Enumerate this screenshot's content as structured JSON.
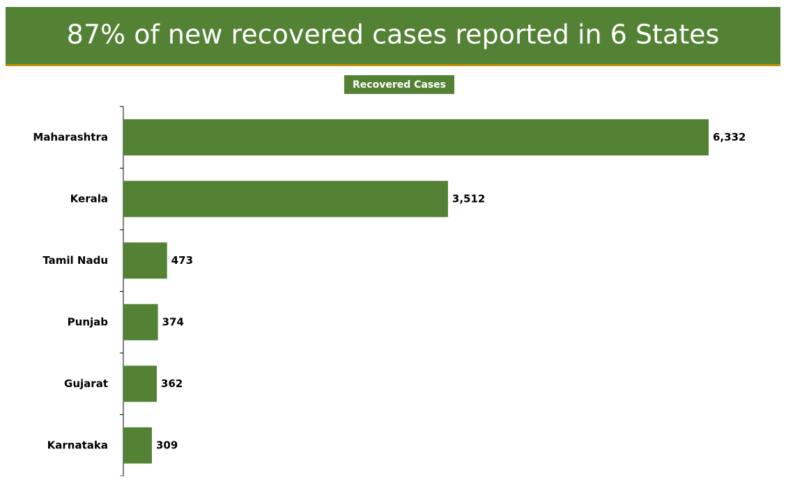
{
  "chart_data": {
    "type": "bar",
    "orientation": "horizontal",
    "title": "87% of new recovered cases reported in 6 States",
    "categories": [
      "Maharashtra",
      "Kerala",
      "Tamil Nadu",
      "Punjab",
      "Gujarat",
      "Karnataka"
    ],
    "series": [
      {
        "name": "Recovered Cases",
        "color": "#548235",
        "values": [
          6332,
          3512,
          473,
          374,
          362,
          309
        ],
        "value_labels": [
          "6,332",
          "3,512",
          "473",
          "374",
          "362",
          "309"
        ]
      }
    ],
    "legend": "top"
  }
}
